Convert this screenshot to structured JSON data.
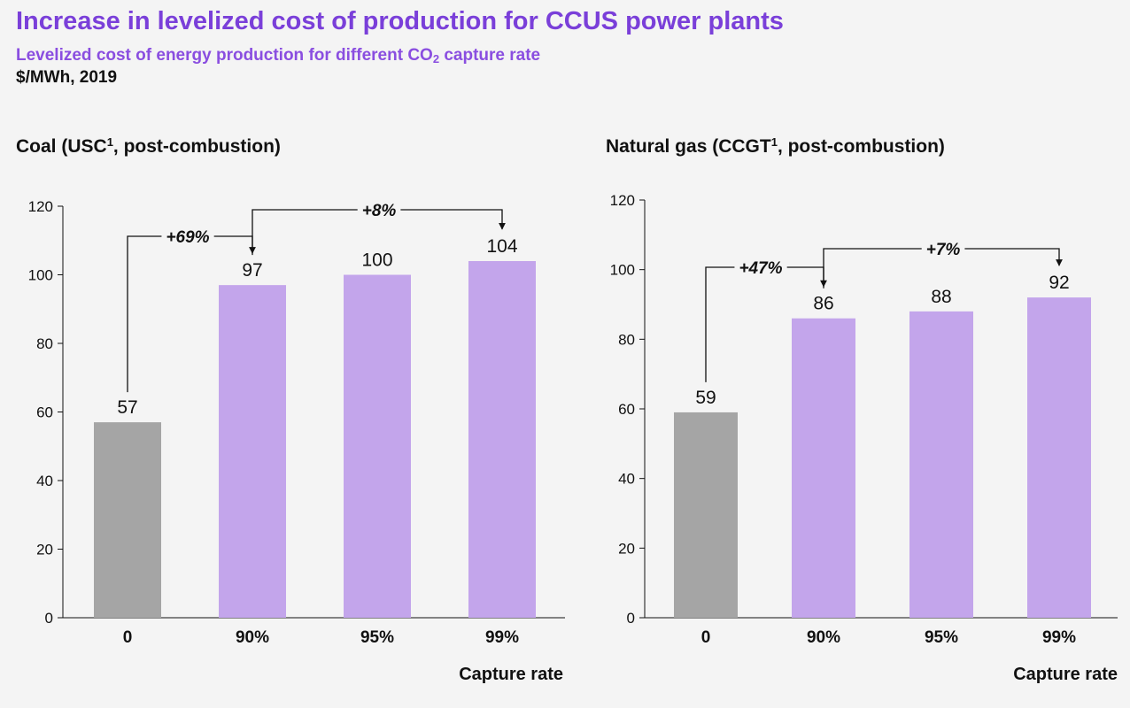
{
  "header": {
    "title": "Increase in levelized cost of production for CCUS power plants",
    "subtitle_pre": "Levelized cost of energy production for different CO",
    "subtitle_sub": "2",
    "subtitle_post": " capture rate",
    "unit": "$/MWh, 2019"
  },
  "colors": {
    "title": "#7a3fd9",
    "subtitle": "#8a4ee0",
    "baseline_bar": "#a5a5a5",
    "ccus_bar": "#c3a5eb"
  },
  "chart_data": [
    {
      "type": "bar",
      "title_pre": "Coal (USC",
      "title_sup": "1",
      "title_post": ", post-combustion)",
      "categories": [
        "0",
        "90%",
        "95%",
        "99%"
      ],
      "values": [
        57,
        97,
        100,
        104
      ],
      "data_labels": [
        "57",
        "97",
        "100",
        "104"
      ],
      "xlabel": "Capture rate",
      "ylabel": "",
      "ylim": [
        0,
        120
      ],
      "yticks": [
        0,
        20,
        40,
        60,
        80,
        100,
        120
      ],
      "bar_colors": [
        "#a5a5a5",
        "#c3a5eb",
        "#c3a5eb",
        "#c3a5eb"
      ],
      "grid": false,
      "annotations": [
        {
          "from": 0,
          "to": 1,
          "label": "+69%"
        },
        {
          "from": 1,
          "to": 3,
          "label": "+8%"
        }
      ]
    },
    {
      "type": "bar",
      "title_pre": "Natural gas (CCGT",
      "title_sup": "1",
      "title_post": ", post-combustion)",
      "categories": [
        "0",
        "90%",
        "95%",
        "99%"
      ],
      "values": [
        59,
        86,
        88,
        92
      ],
      "data_labels": [
        "59",
        "86",
        "88",
        "92"
      ],
      "xlabel": "Capture rate",
      "ylabel": "",
      "ylim": [
        0,
        120
      ],
      "yticks": [
        0,
        20,
        40,
        60,
        80,
        100,
        120
      ],
      "bar_colors": [
        "#a5a5a5",
        "#c3a5eb",
        "#c3a5eb",
        "#c3a5eb"
      ],
      "grid": false,
      "annotations": [
        {
          "from": 0,
          "to": 1,
          "label": "+47%"
        },
        {
          "from": 1,
          "to": 3,
          "label": "+7%"
        }
      ]
    }
  ]
}
